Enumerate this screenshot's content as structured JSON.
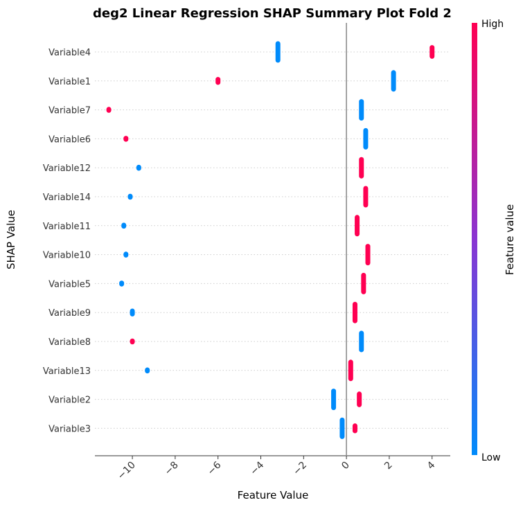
{
  "chart_data": {
    "type": "scatter",
    "title": "deg2 Linear Regression SHAP Summary Plot Fold 2",
    "xlabel": "Feature Value",
    "ylabel": "SHAP Value",
    "xlim": [
      -11.75,
      4.85
    ],
    "x_ticks": [
      -10,
      -8,
      -6,
      -4,
      -2,
      0,
      2,
      4
    ],
    "x_tick_labels": [
      "−10",
      "−8",
      "−6",
      "−4",
      "−2",
      "0",
      "2",
      "4"
    ],
    "zero_line": 0,
    "colorbar": {
      "label": "Feature value",
      "high_label": "High",
      "low_label": "Low",
      "high_color": "#ff0052",
      "mid_color": "#8a34d2",
      "low_color": "#008bfb"
    },
    "features": [
      {
        "name": "Variable4",
        "clusters": [
          {
            "x": -3.2,
            "level": "low",
            "spread": 1.0
          },
          {
            "x": 4.0,
            "level": "high",
            "spread": 0.6
          }
        ]
      },
      {
        "name": "Variable1",
        "clusters": [
          {
            "x": -6.0,
            "level": "high",
            "spread": 0.3
          },
          {
            "x": 2.2,
            "level": "low",
            "spread": 1.0
          }
        ]
      },
      {
        "name": "Variable7",
        "clusters": [
          {
            "x": -11.1,
            "level": "high",
            "spread": 0.2
          },
          {
            "x": 0.7,
            "level": "low",
            "spread": 1.0
          }
        ]
      },
      {
        "name": "Variable6",
        "clusters": [
          {
            "x": -10.3,
            "level": "high",
            "spread": 0.2
          },
          {
            "x": 0.9,
            "level": "low",
            "spread": 1.0
          }
        ]
      },
      {
        "name": "Variable12",
        "clusters": [
          {
            "x": -9.7,
            "level": "low",
            "spread": 0.2
          },
          {
            "x": 0.7,
            "level": "high",
            "spread": 1.0
          }
        ]
      },
      {
        "name": "Variable14",
        "clusters": [
          {
            "x": -10.1,
            "level": "low",
            "spread": 0.2
          },
          {
            "x": 0.9,
            "level": "high",
            "spread": 1.0
          }
        ]
      },
      {
        "name": "Variable11",
        "clusters": [
          {
            "x": -10.4,
            "level": "low",
            "spread": 0.2
          },
          {
            "x": 0.5,
            "level": "high",
            "spread": 1.0
          }
        ]
      },
      {
        "name": "Variable10",
        "clusters": [
          {
            "x": -10.3,
            "level": "low",
            "spread": 0.2
          },
          {
            "x": 1.0,
            "level": "high",
            "spread": 1.0
          }
        ]
      },
      {
        "name": "Variable5",
        "clusters": [
          {
            "x": -10.5,
            "level": "low",
            "spread": 0.2
          },
          {
            "x": 0.8,
            "level": "high",
            "spread": 1.0
          }
        ]
      },
      {
        "name": "Variable9",
        "clusters": [
          {
            "x": -10.0,
            "level": "low",
            "spread": 0.3
          },
          {
            "x": 0.4,
            "level": "high",
            "spread": 1.0
          }
        ]
      },
      {
        "name": "Variable8",
        "clusters": [
          {
            "x": -10.0,
            "level": "high",
            "spread": 0.2
          },
          {
            "x": 0.7,
            "level": "low",
            "spread": 1.0
          }
        ]
      },
      {
        "name": "Variable13",
        "clusters": [
          {
            "x": -9.3,
            "level": "low",
            "spread": 0.2
          },
          {
            "x": 0.2,
            "level": "high",
            "spread": 1.0
          }
        ]
      },
      {
        "name": "Variable2",
        "clusters": [
          {
            "x": -0.6,
            "level": "low",
            "spread": 1.0
          },
          {
            "x": 0.6,
            "level": "high",
            "spread": 0.7
          }
        ]
      },
      {
        "name": "Variable3",
        "clusters": [
          {
            "x": -0.2,
            "level": "low",
            "spread": 1.0
          },
          {
            "x": 0.4,
            "level": "high",
            "spread": 0.4
          }
        ]
      }
    ]
  }
}
